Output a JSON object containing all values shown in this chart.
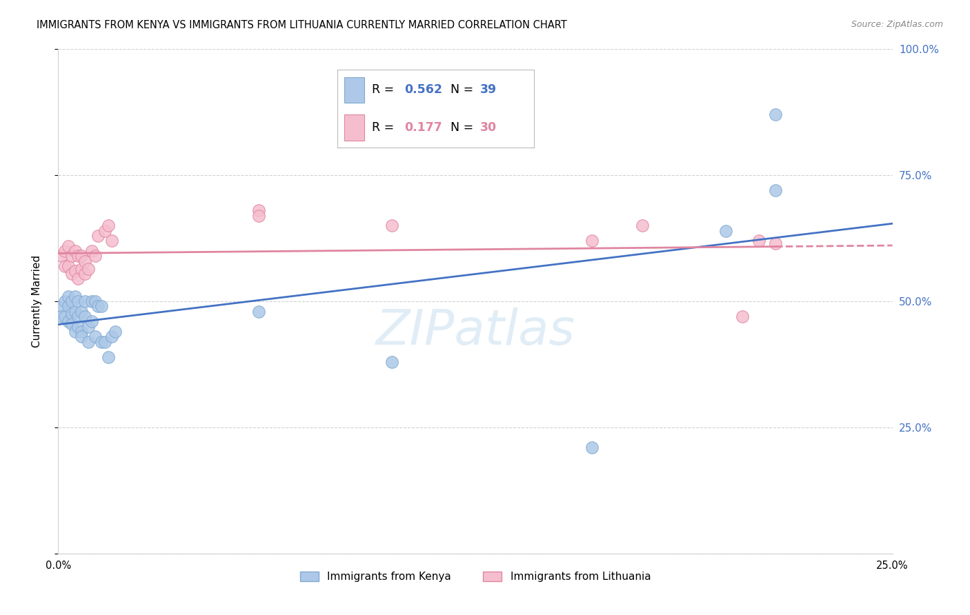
{
  "title": "IMMIGRANTS FROM KENYA VS IMMIGRANTS FROM LITHUANIA CURRENTLY MARRIED CORRELATION CHART",
  "source": "Source: ZipAtlas.com",
  "ylabel": "Currently Married",
  "xlim": [
    0.0,
    0.25
  ],
  "ylim": [
    0.0,
    1.0
  ],
  "ytick_positions": [
    0.0,
    0.25,
    0.5,
    0.75,
    1.0
  ],
  "ytick_labels": [
    "",
    "25.0%",
    "50.0%",
    "75.0%",
    "100.0%"
  ],
  "xtick_positions": [
    0.0,
    0.05,
    0.1,
    0.15,
    0.2,
    0.25
  ],
  "xtick_labels": [
    "0.0%",
    "",
    "",
    "",
    "",
    "25.0%"
  ],
  "kenya_scatter_color": "#adc8e8",
  "kenya_edge_color": "#80aad0",
  "kenya_line_color": "#4472c4",
  "lith_scatter_color": "#f5bece",
  "lith_edge_color": "#e085a0",
  "lith_line_color": "#e085a0",
  "kenya_R": "0.562",
  "kenya_N": "39",
  "lith_R": "0.177",
  "lith_N": "30",
  "kenya_x": [
    0.001,
    0.001,
    0.002,
    0.002,
    0.003,
    0.003,
    0.003,
    0.004,
    0.004,
    0.004,
    0.005,
    0.005,
    0.005,
    0.006,
    0.006,
    0.006,
    0.007,
    0.007,
    0.007,
    0.008,
    0.008,
    0.009,
    0.009,
    0.01,
    0.01,
    0.011,
    0.011,
    0.012,
    0.013,
    0.013,
    0.014,
    0.015,
    0.016,
    0.017,
    0.06,
    0.1,
    0.16,
    0.2,
    0.215
  ],
  "kenya_y": [
    0.49,
    0.47,
    0.5,
    0.47,
    0.49,
    0.46,
    0.51,
    0.5,
    0.475,
    0.455,
    0.48,
    0.44,
    0.51,
    0.5,
    0.47,
    0.45,
    0.48,
    0.44,
    0.43,
    0.5,
    0.47,
    0.45,
    0.42,
    0.5,
    0.46,
    0.5,
    0.43,
    0.49,
    0.49,
    0.42,
    0.42,
    0.39,
    0.43,
    0.44,
    0.48,
    0.38,
    0.21,
    0.64,
    0.72
  ],
  "kenya_y_outlier": [
    0.87
  ],
  "kenya_x_outlier": [
    0.215
  ],
  "lith_x": [
    0.001,
    0.002,
    0.002,
    0.003,
    0.003,
    0.004,
    0.004,
    0.005,
    0.005,
    0.006,
    0.006,
    0.007,
    0.007,
    0.008,
    0.008,
    0.009,
    0.01,
    0.011,
    0.012,
    0.014,
    0.015,
    0.016,
    0.06,
    0.06,
    0.1,
    0.16,
    0.175,
    0.205,
    0.21,
    0.215
  ],
  "lith_y": [
    0.59,
    0.6,
    0.57,
    0.61,
    0.57,
    0.59,
    0.555,
    0.6,
    0.56,
    0.59,
    0.545,
    0.59,
    0.565,
    0.58,
    0.555,
    0.565,
    0.6,
    0.59,
    0.63,
    0.64,
    0.65,
    0.62,
    0.68,
    0.67,
    0.65,
    0.62,
    0.65,
    0.47,
    0.62,
    0.615
  ],
  "watermark_text": "ZIPatlas",
  "watermark_color": "#c8dff0",
  "grid_color": "#d0d0d0",
  "right_axis_color": "#4472c4",
  "legend_R_color_kenya": "#4472c4",
  "legend_N_color_kenya": "#4472c4",
  "legend_R_color_lith": "#e085a0",
  "legend_N_color_lith": "#e085a0"
}
